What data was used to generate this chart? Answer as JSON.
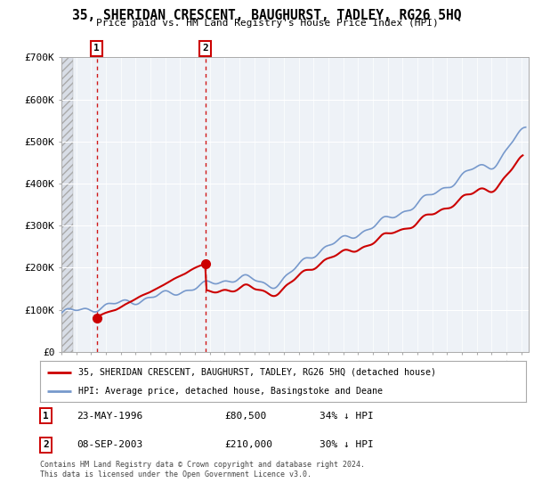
{
  "title": "35, SHERIDAN CRESCENT, BAUGHURST, TADLEY, RG26 5HQ",
  "subtitle": "Price paid vs. HM Land Registry's House Price Index (HPI)",
  "xmin": 1994.0,
  "xmax": 2025.5,
  "ymin": 0,
  "ymax": 700000,
  "yticks": [
    0,
    100000,
    200000,
    300000,
    400000,
    500000,
    600000,
    700000
  ],
  "ytick_labels": [
    "£0",
    "£100K",
    "£200K",
    "£300K",
    "£400K",
    "£500K",
    "£600K",
    "£700K"
  ],
  "purchase1_date": 1996.39,
  "purchase1_price": 80500,
  "purchase1_label": "1",
  "purchase2_date": 2003.69,
  "purchase2_price": 210000,
  "purchase2_label": "2",
  "legend_line1": "35, SHERIDAN CRESCENT, BAUGHURST, TADLEY, RG26 5HQ (detached house)",
  "legend_line2": "HPI: Average price, detached house, Basingstoke and Deane",
  "table_row1": [
    "1",
    "23-MAY-1996",
    "£80,500",
    "34% ↓ HPI"
  ],
  "table_row2": [
    "2",
    "08-SEP-2003",
    "£210,000",
    "30% ↓ HPI"
  ],
  "footnote1": "Contains HM Land Registry data © Crown copyright and database right 2024.",
  "footnote2": "This data is licensed under the Open Government Licence v3.0.",
  "hpi_color": "#7799cc",
  "price_color": "#cc0000",
  "bg_color": "#eef2f7",
  "grid_color": "#ffffff",
  "hatch_bg": "#d8dde6"
}
